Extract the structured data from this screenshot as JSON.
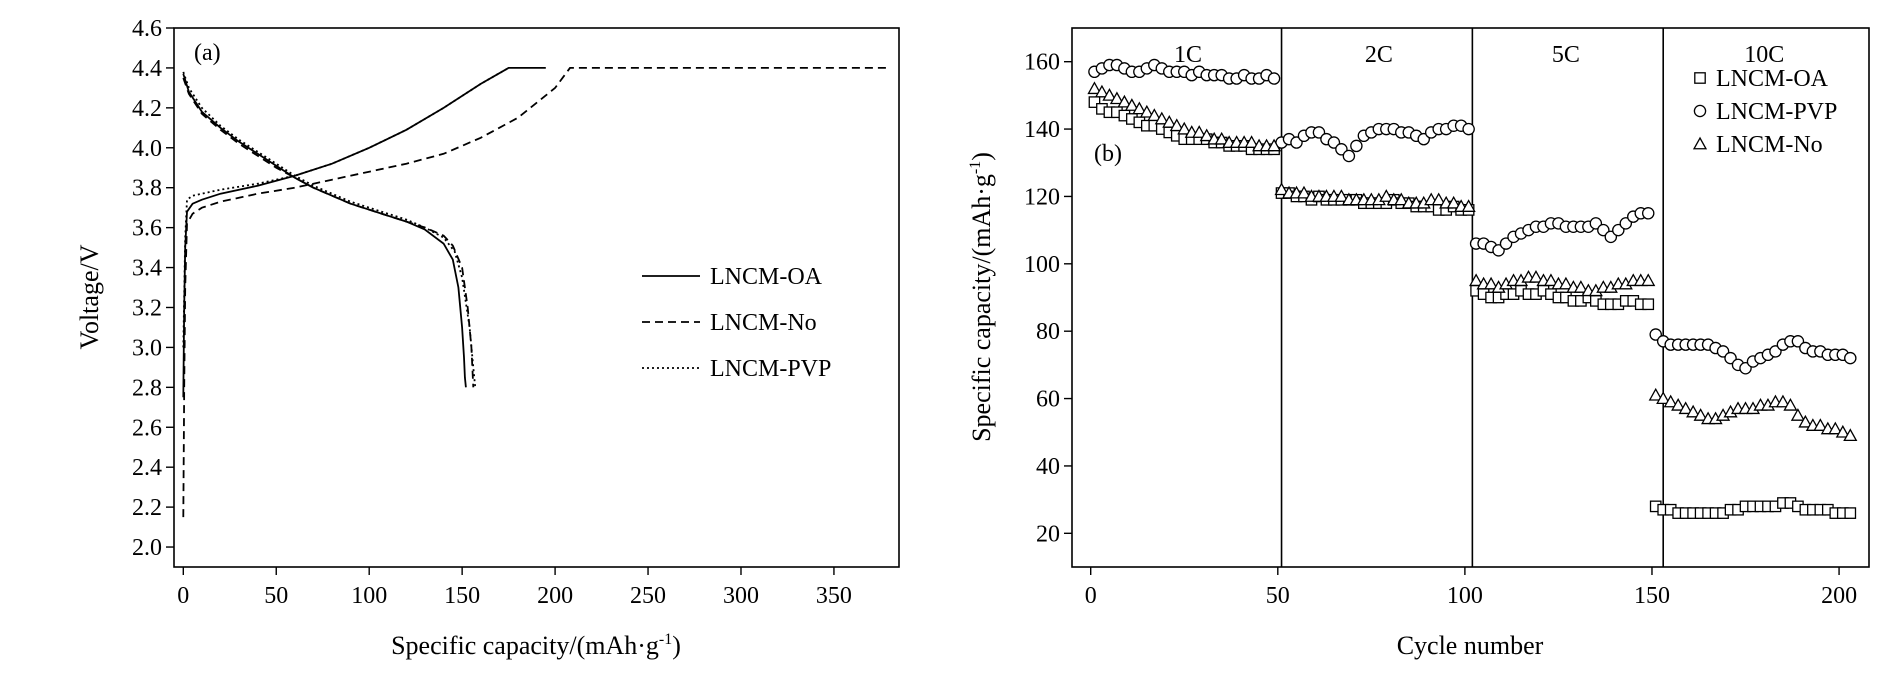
{
  "chart_data": [
    {
      "panel_tag": "(a)",
      "type": "line",
      "xlabel": "Specific capacity/(mAh·g",
      "xlabel_sup": "-1",
      "xlabel_tail": ")",
      "ylabel": "Voltage/V",
      "xlim": [
        -5,
        385
      ],
      "ylim": [
        1.9,
        4.6
      ],
      "xticks": [
        0,
        50,
        100,
        150,
        200,
        250,
        300,
        350
      ],
      "yticks": [
        2.0,
        2.2,
        2.4,
        2.6,
        2.8,
        3.0,
        3.2,
        3.4,
        3.6,
        3.8,
        4.0,
        4.2,
        4.4,
        4.6
      ],
      "ytick_labels": [
        "2.0",
        "2.2",
        "2.4",
        "2.6",
        "2.8",
        "3.0",
        "3.2",
        "3.4",
        "3.6",
        "3.8",
        "4.0",
        "4.2",
        "4.4",
        "4.6"
      ],
      "legend_position": "center-right",
      "series": [
        {
          "name": "LNCM-OA",
          "dash": "solid",
          "charge": {
            "x": [
              0,
              0.5,
              1,
              2,
              5,
              10,
              20,
              40,
              60,
              80,
              100,
              120,
              140,
              160,
              175,
              178,
              195
            ],
            "y": [
              2.75,
              3.2,
              3.5,
              3.68,
              3.72,
              3.74,
              3.77,
              3.81,
              3.86,
              3.92,
              4.0,
              4.09,
              4.2,
              4.32,
              4.4,
              4.4,
              4.4
            ]
          },
          "discharge": {
            "x": [
              0,
              3,
              10,
              20,
              30,
              40,
              50,
              60,
              70,
              80,
              90,
              100,
              110,
              120,
              130,
              140,
              145,
              148,
              150,
              151,
              151.5,
              152
            ],
            "y": [
              4.37,
              4.28,
              4.18,
              4.1,
              4.03,
              3.97,
              3.91,
              3.85,
              3.8,
              3.76,
              3.72,
              3.69,
              3.66,
              3.63,
              3.59,
              3.52,
              3.44,
              3.3,
              3.1,
              2.95,
              2.85,
              2.8
            ]
          }
        },
        {
          "name": "LNCM-No",
          "dash": "dashed",
          "charge": {
            "x": [
              0,
              0.5,
              1,
              2,
              5,
              10,
              20,
              40,
              60,
              80,
              100,
              120,
              140,
              160,
              180,
              200,
              208,
              378
            ],
            "y": [
              2.15,
              2.8,
              3.3,
              3.62,
              3.67,
              3.7,
              3.73,
              3.77,
              3.8,
              3.84,
              3.88,
              3.92,
              3.97,
              4.05,
              4.15,
              4.3,
              4.4,
              4.4
            ]
          },
          "discharge": {
            "x": [
              0,
              3,
              10,
              20,
              30,
              40,
              50,
              60,
              70,
              80,
              90,
              100,
              110,
              120,
              130,
              140,
              145,
              150,
              153,
              155,
              156
            ],
            "y": [
              4.35,
              4.27,
              4.17,
              4.09,
              4.02,
              3.96,
              3.9,
              3.85,
              3.8,
              3.76,
              3.72,
              3.69,
              3.66,
              3.63,
              3.6,
              3.56,
              3.51,
              3.4,
              3.2,
              3.0,
              2.8
            ]
          }
        },
        {
          "name": "LNCM-PVP",
          "dash": "dotted",
          "charge": {
            "x": [
              0,
              1,
              2,
              5,
              10,
              20,
              40,
              60,
              80,
              100,
              120,
              140,
              160,
              175
            ],
            "y": [
              3.0,
              3.55,
              3.74,
              3.76,
              3.77,
              3.79,
              3.82,
              3.86,
              3.92,
              4.0,
              4.09,
              4.2,
              4.32,
              4.4
            ]
          },
          "discharge": {
            "x": [
              0,
              3,
              10,
              20,
              30,
              40,
              50,
              60,
              70,
              80,
              90,
              100,
              110,
              120,
              130,
              140,
              146,
              150,
              154,
              156,
              157
            ],
            "y": [
              4.38,
              4.3,
              4.2,
              4.11,
              4.04,
              3.98,
              3.92,
              3.86,
              3.81,
              3.77,
              3.73,
              3.7,
              3.67,
              3.64,
              3.6,
              3.55,
              3.48,
              3.35,
              3.1,
              2.9,
              2.8
            ]
          }
        }
      ]
    },
    {
      "panel_tag": "(b)",
      "type": "scatter",
      "xlabel": "Cycle number",
      "ylabel": "Specific capacity/(mAh·g",
      "ylabel_sup": "-1",
      "ylabel_tail": ")",
      "xlim": [
        -5,
        208
      ],
      "ylim": [
        10,
        170
      ],
      "xticks": [
        0,
        50,
        100,
        150,
        200
      ],
      "yticks": [
        20,
        40,
        60,
        80,
        100,
        120,
        140,
        160
      ],
      "rate_dividers": [
        51,
        102,
        153
      ],
      "rate_labels": [
        {
          "text": "1C",
          "x": 26
        },
        {
          "text": "2C",
          "x": 77
        },
        {
          "text": "5C",
          "x": 127
        },
        {
          "text": "10C",
          "x": 180
        }
      ],
      "legend_position": "top-right",
      "series": [
        {
          "name": "LNCM-OA",
          "marker": "square",
          "x": [
            1,
            3,
            5,
            7,
            9,
            11,
            13,
            15,
            17,
            19,
            21,
            23,
            25,
            27,
            29,
            31,
            33,
            35,
            37,
            39,
            41,
            43,
            45,
            47,
            49,
            51,
            53,
            55,
            57,
            59,
            61,
            63,
            65,
            67,
            69,
            71,
            73,
            75,
            77,
            79,
            81,
            83,
            85,
            87,
            89,
            91,
            93,
            95,
            97,
            99,
            101,
            103,
            105,
            107,
            109,
            111,
            113,
            115,
            117,
            119,
            121,
            123,
            125,
            127,
            129,
            131,
            133,
            135,
            137,
            139,
            141,
            143,
            145,
            147,
            149,
            151,
            153,
            155,
            157,
            159,
            161,
            163,
            165,
            167,
            169,
            171,
            173,
            175,
            177,
            179,
            181,
            183,
            185,
            187,
            189,
            191,
            193,
            195,
            197,
            199,
            201,
            203
          ],
          "y": [
            148,
            146,
            145,
            145,
            144,
            143,
            142,
            141,
            141,
            140,
            139,
            138,
            137,
            137,
            137,
            137,
            136,
            136,
            135,
            135,
            135,
            134,
            134,
            134,
            134,
            121,
            121,
            120,
            120,
            119,
            120,
            119,
            119,
            119,
            119,
            119,
            118,
            118,
            118,
            118,
            119,
            118,
            118,
            117,
            117,
            117,
            116,
            116,
            117,
            116,
            116,
            92,
            91,
            90,
            90,
            91,
            91,
            92,
            91,
            91,
            92,
            91,
            90,
            90,
            89,
            89,
            90,
            89,
            88,
            88,
            88,
            89,
            89,
            88,
            88,
            28,
            27,
            27,
            26,
            26,
            26,
            26,
            26,
            26,
            26,
            27,
            27,
            28,
            28,
            28,
            28,
            28,
            29,
            29,
            28,
            27,
            27,
            27,
            27,
            26,
            26,
            26
          ]
        },
        {
          "name": "LNCM-PVP",
          "marker": "circle",
          "x": [
            1,
            3,
            5,
            7,
            9,
            11,
            13,
            15,
            17,
            19,
            21,
            23,
            25,
            27,
            29,
            31,
            33,
            35,
            37,
            39,
            41,
            43,
            45,
            47,
            49,
            51,
            53,
            55,
            57,
            59,
            61,
            63,
            65,
            67,
            69,
            71,
            73,
            75,
            77,
            79,
            81,
            83,
            85,
            87,
            89,
            91,
            93,
            95,
            97,
            99,
            101,
            103,
            105,
            107,
            109,
            111,
            113,
            115,
            117,
            119,
            121,
            123,
            125,
            127,
            129,
            131,
            133,
            135,
            137,
            139,
            141,
            143,
            145,
            147,
            149,
            151,
            153,
            155,
            157,
            159,
            161,
            163,
            165,
            167,
            169,
            171,
            173,
            175,
            177,
            179,
            181,
            183,
            185,
            187,
            189,
            191,
            193,
            195,
            197,
            199,
            201,
            203
          ],
          "y": [
            157,
            158,
            159,
            159,
            158,
            157,
            157,
            158,
            159,
            158,
            157,
            157,
            157,
            156,
            157,
            156,
            156,
            156,
            155,
            155,
            156,
            155,
            155,
            156,
            155,
            136,
            137,
            136,
            138,
            139,
            139,
            137,
            136,
            134,
            132,
            135,
            138,
            139,
            140,
            140,
            140,
            139,
            139,
            138,
            137,
            139,
            140,
            140,
            141,
            141,
            140,
            106,
            106,
            105,
            104,
            106,
            108,
            109,
            110,
            111,
            111,
            112,
            112,
            111,
            111,
            111,
            111,
            112,
            110,
            108,
            110,
            112,
            114,
            115,
            115,
            79,
            77,
            76,
            76,
            76,
            76,
            76,
            76,
            75,
            74,
            72,
            70,
            69,
            71,
            72,
            73,
            74,
            76,
            77,
            77,
            75,
            74,
            74,
            73,
            73,
            73,
            72
          ]
        },
        {
          "name": "LNCM-No",
          "marker": "triangle",
          "x": [
            1,
            3,
            5,
            7,
            9,
            11,
            13,
            15,
            17,
            19,
            21,
            23,
            25,
            27,
            29,
            31,
            33,
            35,
            37,
            39,
            41,
            43,
            45,
            47,
            49,
            51,
            53,
            55,
            57,
            59,
            61,
            63,
            65,
            67,
            69,
            71,
            73,
            75,
            77,
            79,
            81,
            83,
            85,
            87,
            89,
            91,
            93,
            95,
            97,
            99,
            101,
            103,
            105,
            107,
            109,
            111,
            113,
            115,
            117,
            119,
            121,
            123,
            125,
            127,
            129,
            131,
            133,
            135,
            137,
            139,
            141,
            143,
            145,
            147,
            149,
            151,
            153,
            155,
            157,
            159,
            161,
            163,
            165,
            167,
            169,
            171,
            173,
            175,
            177,
            179,
            181,
            183,
            185,
            187,
            189,
            191,
            193,
            195,
            197,
            199,
            201,
            203
          ],
          "y": [
            152,
            151,
            150,
            149,
            148,
            147,
            146,
            145,
            144,
            143,
            142,
            141,
            140,
            139,
            139,
            138,
            137,
            137,
            136,
            136,
            136,
            136,
            135,
            135,
            135,
            122,
            121,
            121,
            121,
            120,
            120,
            120,
            120,
            120,
            119,
            119,
            119,
            119,
            119,
            120,
            119,
            119,
            118,
            118,
            118,
            119,
            119,
            118,
            118,
            117,
            117,
            95,
            94,
            94,
            93,
            94,
            95,
            95,
            96,
            96,
            95,
            95,
            94,
            94,
            93,
            93,
            92,
            92,
            93,
            93,
            94,
            94,
            95,
            95,
            95,
            61,
            60,
            59,
            58,
            57,
            56,
            55,
            54,
            54,
            55,
            56,
            57,
            57,
            57,
            58,
            58,
            59,
            59,
            58,
            55,
            53,
            52,
            52,
            51,
            51,
            50,
            49
          ]
        }
      ]
    }
  ]
}
